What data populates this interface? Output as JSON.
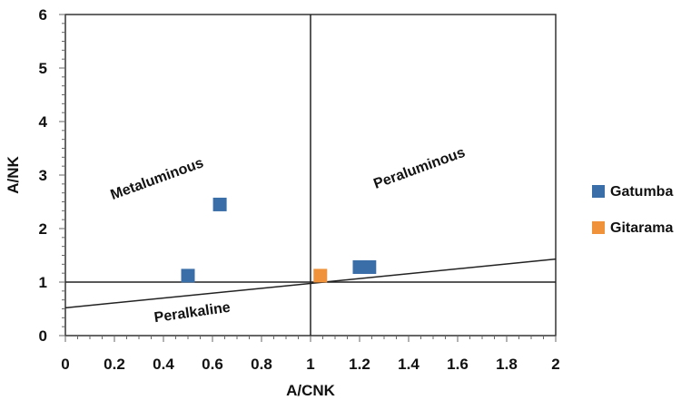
{
  "chart_data": {
    "type": "scatter",
    "xlabel": "A/CNK",
    "ylabel": "A/NK",
    "xlim": [
      0,
      2
    ],
    "ylim": [
      0,
      6
    ],
    "x_ticks": [
      "0",
      "0.2",
      "0.4",
      "0.6",
      "0.8",
      "1",
      "1.2",
      "1.4",
      "1.6",
      "1.8",
      "2"
    ],
    "y_ticks": [
      "0",
      "1",
      "2",
      "3",
      "4",
      "5",
      "6"
    ],
    "grid": false,
    "legend_position": "right",
    "series": [
      {
        "name": "Gatumba",
        "color": "#3a6ea8",
        "marker": "square",
        "points": [
          {
            "x": 0.5,
            "y": 1.12
          },
          {
            "x": 0.63,
            "y": 2.45
          },
          {
            "x": 1.2,
            "y": 1.28
          },
          {
            "x": 1.24,
            "y": 1.28
          }
        ]
      },
      {
        "name": "Gitarama",
        "color": "#f0923a",
        "marker": "square",
        "points": [
          {
            "x": 1.04,
            "y": 1.12
          }
        ]
      }
    ],
    "reference_lines": [
      {
        "x1": 0,
        "y1": 1,
        "x2": 2,
        "y2": 1
      },
      {
        "x1": 1,
        "y1": 0,
        "x2": 1,
        "y2": 6
      },
      {
        "x1": 0,
        "y1": 0.52,
        "x2": 2,
        "y2": 1.43
      }
    ],
    "annotations": [
      {
        "text": "Metaluminous",
        "x": 0.38,
        "y": 2.85,
        "rotation": -20
      },
      {
        "text": "Peraluminous",
        "x": 1.45,
        "y": 3.05,
        "rotation": -20
      },
      {
        "text": "Peralkaline",
        "x": 0.52,
        "y": 0.35,
        "rotation": -8
      }
    ]
  }
}
